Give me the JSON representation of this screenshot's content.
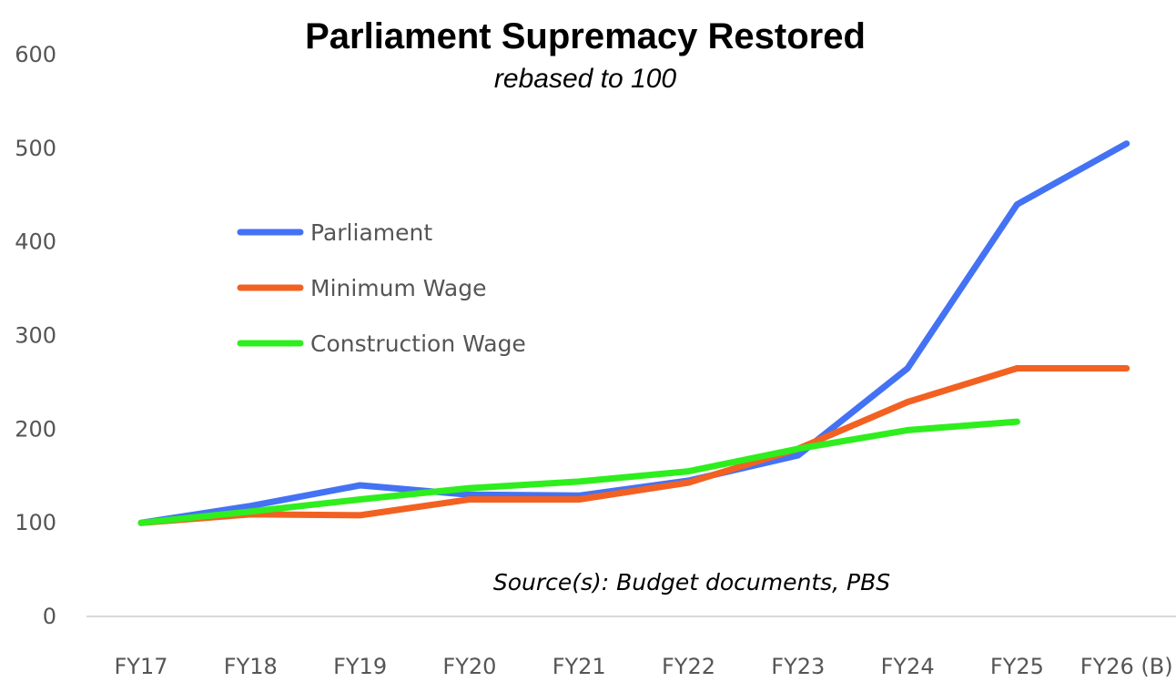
{
  "chart_data": {
    "type": "line",
    "title": "Parliament Supremacy Restored",
    "subtitle": "rebased to 100",
    "source": "Source(s): Budget documents, PBS",
    "categories": [
      "FY17",
      "FY18",
      "FY19",
      "FY20",
      "FY21",
      "FY22",
      "FY23",
      "FY24",
      "FY25",
      "FY26 (B)"
    ],
    "ylim": [
      0,
      600
    ],
    "yticks": [
      0,
      100,
      200,
      300,
      400,
      500,
      600
    ],
    "grid": false,
    "legend_position": "left",
    "series": [
      {
        "name": "Parliament",
        "color": "#4472F4",
        "values": [
          100,
          118,
          140,
          130,
          129,
          145,
          172,
          265,
          440,
          505
        ]
      },
      {
        "name": "Minimum Wage",
        "color": "#F26122",
        "values": [
          100,
          109,
          108,
          125,
          125,
          143,
          179,
          229,
          265,
          265
        ]
      },
      {
        "name": "Construction Wage",
        "color": "#2EEE1E",
        "values": [
          100,
          112,
          125,
          137,
          144,
          155,
          179,
          199,
          208,
          null
        ]
      }
    ]
  }
}
